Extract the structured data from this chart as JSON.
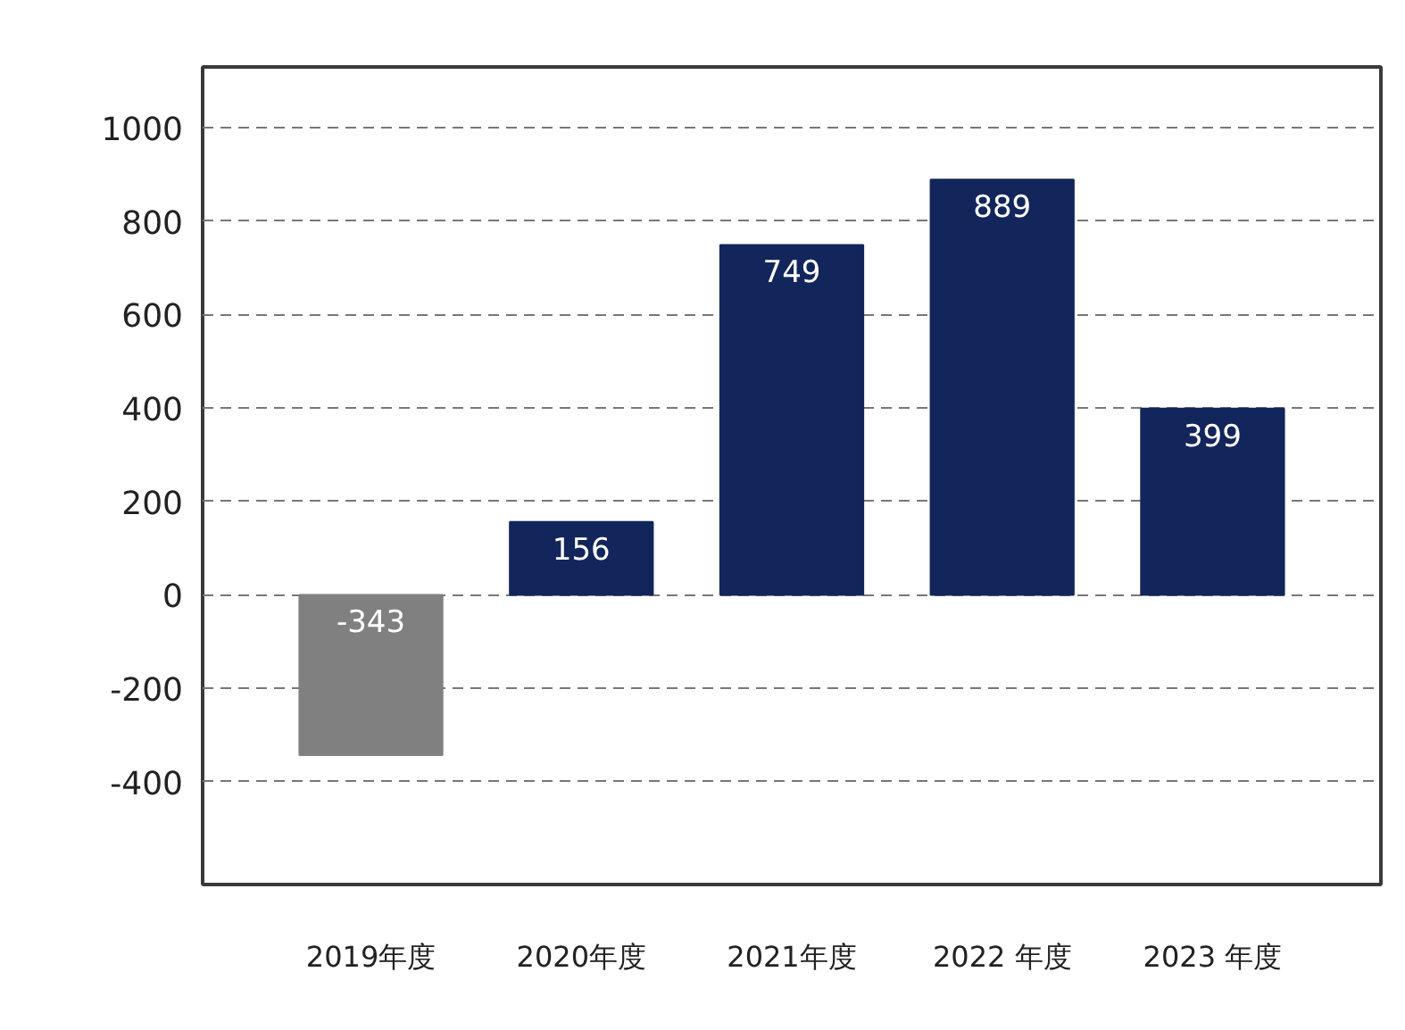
{
  "chart_data": {
    "type": "bar",
    "categories": [
      "2019年度",
      "2020年度",
      "2021年度",
      "2022 年度",
      "2023 年度"
    ],
    "values": [
      -343,
      156,
      749,
      889,
      399
    ],
    "colors": [
      "#808080",
      "#13265b",
      "#13265b",
      "#13265b",
      "#13265b"
    ],
    "ylim": [
      -620,
      1130
    ],
    "yticks": [
      -400,
      -200,
      0,
      200,
      400,
      600,
      800,
      1000
    ],
    "grid": "y",
    "data_labels": true
  }
}
